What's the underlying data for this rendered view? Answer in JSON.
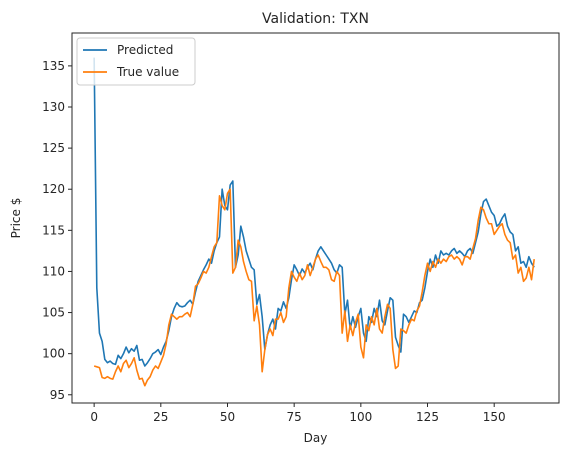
{
  "chart_data": {
    "type": "line",
    "title": "Validation: TXN",
    "xlabel": "Day",
    "ylabel": "Price $",
    "xlim": [
      -8.3,
      174.3
    ],
    "ylim": [
      94.0,
      139.0
    ],
    "xticks": [
      0,
      25,
      50,
      75,
      100,
      125,
      150
    ],
    "yticks": [
      95,
      100,
      105,
      110,
      115,
      120,
      125,
      130,
      135
    ],
    "grid": false,
    "legend": "top-left",
    "series": [
      {
        "name": "Predicted",
        "color": "#1f77b4",
        "x": [
          0,
          1,
          2,
          3,
          4,
          5,
          6,
          7,
          8,
          9,
          10,
          11,
          12,
          13,
          14,
          15,
          16,
          17,
          18,
          19,
          20,
          21,
          22,
          23,
          24,
          25,
          26,
          27,
          28,
          29,
          30,
          31,
          32,
          33,
          34,
          35,
          36,
          37,
          38,
          39,
          40,
          41,
          42,
          43,
          44,
          45,
          46,
          47,
          48,
          49,
          50,
          51,
          52,
          53,
          54,
          55,
          56,
          57,
          58,
          59,
          60,
          61,
          62,
          63,
          64,
          65,
          66,
          67,
          68,
          69,
          70,
          71,
          72,
          73,
          74,
          75,
          76,
          77,
          78,
          79,
          80,
          81,
          82,
          83,
          84,
          85,
          86,
          87,
          88,
          89,
          90,
          91,
          92,
          93,
          94,
          95,
          96,
          97,
          98,
          99,
          100,
          101,
          102,
          103,
          104,
          105,
          106,
          107,
          108,
          109,
          110,
          111,
          112,
          113,
          114,
          115,
          116,
          117,
          118,
          119,
          120,
          121,
          122,
          123,
          124,
          125,
          126,
          127,
          128,
          129,
          130,
          131,
          132,
          133,
          134,
          135,
          136,
          137,
          138,
          139,
          140,
          141,
          142,
          143,
          144,
          145,
          146,
          147,
          148,
          149,
          150,
          151,
          152,
          153,
          154,
          155,
          156,
          157,
          158,
          159,
          160,
          161,
          162,
          163,
          164,
          165
        ],
        "values": [
          136.0,
          108.0,
          102.5,
          101.5,
          99.3,
          98.9,
          99.1,
          98.8,
          98.7,
          99.8,
          99.4,
          100.0,
          100.8,
          100.1,
          100.6,
          100.3,
          101.0,
          99.2,
          99.3,
          98.5,
          98.9,
          99.4,
          100.0,
          100.2,
          100.5,
          99.9,
          100.8,
          101.5,
          102.8,
          104.5,
          105.5,
          106.2,
          105.8,
          105.7,
          105.8,
          106.2,
          106.5,
          106.0,
          107.5,
          108.8,
          109.5,
          110.2,
          110.8,
          111.5,
          111.0,
          112.5,
          113.5,
          114.2,
          120.0,
          118.0,
          117.5,
          120.5,
          121.0,
          110.5,
          112.0,
          115.5,
          114.2,
          112.5,
          111.5,
          110.5,
          110.2,
          106.0,
          107.2,
          104.5,
          100.5,
          102.3,
          103.5,
          104.2,
          103.0,
          105.5,
          105.2,
          106.3,
          105.5,
          106.8,
          109.0,
          110.8,
          110.2,
          109.5,
          110.3,
          109.8,
          110.5,
          111.0,
          110.2,
          111.5,
          112.5,
          113.0,
          112.5,
          112.0,
          111.5,
          111.0,
          110.2,
          109.8,
          110.8,
          110.5,
          104.8,
          106.5,
          103.0,
          104.5,
          103.2,
          104.5,
          105.5,
          102.5,
          101.5,
          104.5,
          103.8,
          105.5,
          104.5,
          106.5,
          104.0,
          103.5,
          105.2,
          106.8,
          106.5,
          102.0,
          101.0,
          100.2,
          104.8,
          104.5,
          103.8,
          104.5,
          105.2,
          105.0,
          106.2,
          106.5,
          108.0,
          110.0,
          111.5,
          110.5,
          112.0,
          111.0,
          112.5,
          112.0,
          112.2,
          112.0,
          112.5,
          112.8,
          112.2,
          112.5,
          112.2,
          111.8,
          112.5,
          112.8,
          112.2,
          113.5,
          114.8,
          117.0,
          118.5,
          118.8,
          118.0,
          117.2,
          116.8,
          115.5,
          115.8,
          116.5,
          117.0,
          115.5,
          114.8,
          114.5,
          112.5,
          113.0,
          111.0,
          111.2,
          110.5,
          111.8,
          111.0,
          110.5
        ]
      },
      {
        "name": "True value",
        "color": "#ff7f0e",
        "x": [
          0,
          1,
          2,
          3,
          4,
          5,
          6,
          7,
          8,
          9,
          10,
          11,
          12,
          13,
          14,
          15,
          16,
          17,
          18,
          19,
          20,
          21,
          22,
          23,
          24,
          25,
          26,
          27,
          28,
          29,
          30,
          31,
          32,
          33,
          34,
          35,
          36,
          37,
          38,
          39,
          40,
          41,
          42,
          43,
          44,
          45,
          46,
          47,
          48,
          49,
          50,
          51,
          52,
          53,
          54,
          55,
          56,
          57,
          58,
          59,
          60,
          61,
          62,
          63,
          64,
          65,
          66,
          67,
          68,
          69,
          70,
          71,
          72,
          73,
          74,
          75,
          76,
          77,
          78,
          79,
          80,
          81,
          82,
          83,
          84,
          85,
          86,
          87,
          88,
          89,
          90,
          91,
          92,
          93,
          94,
          95,
          96,
          97,
          98,
          99,
          100,
          101,
          102,
          103,
          104,
          105,
          106,
          107,
          108,
          109,
          110,
          111,
          112,
          113,
          114,
          115,
          116,
          117,
          118,
          119,
          120,
          121,
          122,
          123,
          124,
          125,
          126,
          127,
          128,
          129,
          130,
          131,
          132,
          133,
          134,
          135,
          136,
          137,
          138,
          139,
          140,
          141,
          142,
          143,
          144,
          145,
          146,
          147,
          148,
          149,
          150,
          151,
          152,
          153,
          154,
          155,
          156,
          157,
          158,
          159,
          160,
          161,
          162,
          163,
          164,
          165
        ],
        "values": [
          98.5,
          98.4,
          98.3,
          97.1,
          97.0,
          97.2,
          97.0,
          96.9,
          97.8,
          98.5,
          97.8,
          98.8,
          99.2,
          98.3,
          98.8,
          99.5,
          98.0,
          96.9,
          97.0,
          96.1,
          96.8,
          97.2,
          98.0,
          98.5,
          98.2,
          99.0,
          99.8,
          101.2,
          103.5,
          104.8,
          104.5,
          104.2,
          104.5,
          104.5,
          104.8,
          105.0,
          104.5,
          106.0,
          108.2,
          108.5,
          109.2,
          110.0,
          109.8,
          110.5,
          111.8,
          113.0,
          113.5,
          119.2,
          118.0,
          117.5,
          119.5,
          120.0,
          109.8,
          110.5,
          113.8,
          113.0,
          111.2,
          110.0,
          109.0,
          108.8,
          104.0,
          105.8,
          103.5,
          97.8,
          100.5,
          102.3,
          103.0,
          102.2,
          104.2,
          104.2,
          105.0,
          103.8,
          104.5,
          108.0,
          110.0,
          109.3,
          108.8,
          109.8,
          109.0,
          109.5,
          110.8,
          109.5,
          110.5,
          111.5,
          112.0,
          111.2,
          110.5,
          110.5,
          110.2,
          109.0,
          108.8,
          110.0,
          109.5,
          102.5,
          105.2,
          101.5,
          103.5,
          102.2,
          103.8,
          104.8,
          100.8,
          99.5,
          103.5,
          102.8,
          104.5,
          103.5,
          105.5,
          103.0,
          102.5,
          104.5,
          106.0,
          105.5,
          100.5,
          98.2,
          98.5,
          103.0,
          102.8,
          102.5,
          103.5,
          104.2,
          104.0,
          105.2,
          105.8,
          107.5,
          109.5,
          111.0,
          110.0,
          111.2,
          110.5,
          111.5,
          111.0,
          111.5,
          111.2,
          111.8,
          112.0,
          111.5,
          111.8,
          111.5,
          110.8,
          111.8,
          111.8,
          111.5,
          112.8,
          114.0,
          116.2,
          117.8,
          117.5,
          116.5,
          115.8,
          115.8,
          114.5,
          115.0,
          115.5,
          115.8,
          114.5,
          113.8,
          113.5,
          111.5,
          112.0,
          109.8,
          110.5,
          108.8,
          109.2,
          110.5,
          109.0,
          111.5
        ]
      }
    ]
  }
}
